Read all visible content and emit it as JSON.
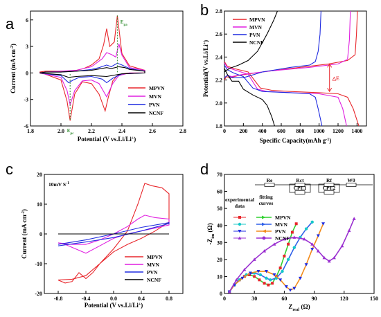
{
  "colors": {
    "MPVN": "#e8262b",
    "MVN": "#e01fe0",
    "PVN": "#1f2be0",
    "NCNF": "#000000",
    "ann_green": "#2e8b2e"
  },
  "chart_data": [
    {
      "panel": "a",
      "type": "line",
      "xlabel": "Potential (V vs.Li/Li+)",
      "ylabel": "Current (mA cm-2)",
      "xlim": [
        1.8,
        2.8
      ],
      "ylim": [
        -6,
        7
      ],
      "xticks": [
        "1.8",
        "2.0",
        "2.2",
        "2.4",
        "2.6",
        "2.8"
      ],
      "yticks": [
        "-6",
        "-3",
        "0",
        "3",
        "6"
      ],
      "legend": [
        "MPVN",
        "MVN",
        "PVN",
        "NCNF"
      ],
      "annotations": {
        "epa": "Epa",
        "epc": "Epc"
      },
      "series": [
        {
          "name": "MPVN",
          "x": [
            1.86,
            2.0,
            2.04,
            2.06,
            2.09,
            2.14,
            2.2,
            2.25,
            2.29,
            2.31,
            2.34,
            2.37,
            2.4,
            2.45,
            2.5,
            2.55,
            2.55,
            2.45,
            2.4,
            2.37,
            2.35,
            2.32,
            2.3,
            2.28,
            2.25,
            2.2,
            2.15,
            2.1,
            2.05,
            2.0,
            1.95,
            1.9,
            1.86
          ],
          "y": [
            0.1,
            -0.8,
            -3.2,
            -5.4,
            -2.4,
            -1.0,
            -1.2,
            -2.4,
            -4.3,
            -2.8,
            -0.9,
            -0.3,
            -0.1,
            0,
            0,
            0,
            0.3,
            0.8,
            2.2,
            6.5,
            3.5,
            3.0,
            5.0,
            3.2,
            1.6,
            0.9,
            0.5,
            0.3,
            0.2,
            0.2,
            0.2,
            0.2,
            0.1
          ]
        },
        {
          "name": "MVN",
          "x": [
            1.86,
            2.0,
            2.04,
            2.06,
            2.09,
            2.14,
            2.2,
            2.25,
            2.3,
            2.34,
            2.38,
            2.45,
            2.55,
            2.55,
            2.45,
            2.4,
            2.38,
            2.36,
            2.33,
            2.3,
            2.27,
            2.2,
            2.1,
            2.0,
            1.9,
            1.86
          ],
          "y": [
            0,
            -0.5,
            -2.0,
            -3.6,
            -2.0,
            -0.9,
            -0.8,
            -1.2,
            -2.7,
            -1.2,
            -0.3,
            0,
            0,
            0.3,
            0.6,
            2.0,
            3.3,
            1.8,
            2.1,
            2.3,
            1.6,
            0.7,
            0.3,
            0.2,
            0.1,
            0
          ]
        },
        {
          "name": "PVN",
          "x": [
            1.86,
            2.0,
            2.05,
            2.08,
            2.12,
            2.2,
            2.27,
            2.3,
            2.34,
            2.4,
            2.55,
            2.55,
            2.45,
            2.4,
            2.37,
            2.33,
            2.3,
            2.25,
            2.2,
            2.1,
            2.0,
            1.9,
            1.86
          ],
          "y": [
            0,
            -0.3,
            -1.1,
            -0.8,
            -0.5,
            -0.4,
            -0.7,
            -1.1,
            -0.6,
            -0.1,
            0,
            0.2,
            0.5,
            0.9,
            1.1,
            0.7,
            0.9,
            0.6,
            0.4,
            0.2,
            0.1,
            0.1,
            0
          ]
        },
        {
          "name": "NCNF",
          "x": [
            1.86,
            2.0,
            2.05,
            2.1,
            2.2,
            2.3,
            2.4,
            2.55,
            2.55,
            2.45,
            2.42,
            2.38,
            2.33,
            2.3,
            2.2,
            2.1,
            2.0,
            1.9,
            1.86
          ],
          "y": [
            0,
            -0.2,
            -0.5,
            -0.4,
            -0.3,
            -0.4,
            -0.1,
            0,
            0.2,
            0.4,
            0.6,
            0.7,
            0.5,
            0.6,
            0.3,
            0.2,
            0.1,
            0.1,
            0
          ]
        }
      ]
    },
    {
      "panel": "b",
      "type": "line",
      "xlabel": "Specific Capacity(mAh g-1)",
      "ylabel": "Potential(V vs.Li/Li+)",
      "xlim": [
        0,
        1500
      ],
      "ylim": [
        1.8,
        2.8
      ],
      "xticks": [
        "0",
        "200",
        "400",
        "600",
        "800",
        "1000",
        "1200",
        "1400"
      ],
      "yticks": [
        "1.8",
        "2.0",
        "2.2",
        "2.4",
        "2.6",
        "2.8"
      ],
      "legend": [
        "MPVN",
        "MVN",
        "PVN",
        "NCNF"
      ],
      "annotations": {
        "delta_e": "△E"
      },
      "series": [
        {
          "name": "MPVN discharge",
          "x": [
            0,
            30,
            100,
            250,
            380,
            500,
            700,
            1000,
            1200,
            1300,
            1360,
            1400,
            1420
          ],
          "y": [
            2.36,
            2.32,
            2.3,
            2.27,
            2.13,
            2.11,
            2.1,
            2.09,
            2.08,
            2.05,
            1.95,
            1.85,
            1.8
          ]
        },
        {
          "name": "MPVN charge",
          "x": [
            0,
            20,
            60,
            150,
            400,
            800,
            1100,
            1300,
            1380,
            1395,
            1405
          ],
          "y": [
            2.2,
            2.23,
            2.22,
            2.24,
            2.27,
            2.31,
            2.34,
            2.37,
            2.42,
            2.6,
            2.8
          ]
        },
        {
          "name": "MVN discharge",
          "x": [
            0,
            30,
            100,
            250,
            350,
            450,
            700,
            1000,
            1200,
            1250,
            1290
          ],
          "y": [
            2.35,
            2.31,
            2.29,
            2.25,
            2.12,
            2.1,
            2.09,
            2.08,
            2.05,
            1.95,
            1.8
          ]
        },
        {
          "name": "MVN charge",
          "x": [
            0,
            30,
            80,
            200,
            500,
            900,
            1200,
            1300,
            1320,
            1330
          ],
          "y": [
            2.22,
            2.24,
            2.23,
            2.25,
            2.28,
            2.31,
            2.34,
            2.38,
            2.55,
            2.8
          ]
        },
        {
          "name": "PVN discharge",
          "x": [
            0,
            30,
            100,
            200,
            300,
            400,
            700,
            900,
            960,
            990,
            1030
          ],
          "y": [
            2.33,
            2.29,
            2.26,
            2.23,
            2.13,
            2.1,
            2.09,
            2.08,
            2.05,
            1.95,
            1.8
          ]
        },
        {
          "name": "PVN charge",
          "x": [
            0,
            30,
            80,
            200,
            400,
            700,
            900,
            960,
            990,
            1010,
            1020
          ],
          "y": [
            2.22,
            2.24,
            2.22,
            2.22,
            2.27,
            2.31,
            2.33,
            2.36,
            2.45,
            2.6,
            2.8
          ]
        },
        {
          "name": "NCNF discharge",
          "x": [
            0,
            30,
            80,
            150,
            200,
            300,
            400,
            450,
            500,
            530
          ],
          "y": [
            2.3,
            2.25,
            2.19,
            2.19,
            2.12,
            2.07,
            2.03,
            1.98,
            1.88,
            1.8
          ]
        },
        {
          "name": "NCNF charge",
          "x": [
            0,
            50,
            150,
            250,
            350,
            450,
            520,
            560
          ],
          "y": [
            2.27,
            2.3,
            2.33,
            2.37,
            2.45,
            2.6,
            2.72,
            2.8
          ]
        }
      ]
    },
    {
      "panel": "c",
      "type": "line",
      "xlabel": "Potential (V vs.Li/Li+)",
      "ylabel": "Current (mA cm-2)",
      "xlim": [
        -1.0,
        1.0
      ],
      "ylim": [
        -20,
        20
      ],
      "xticks": [
        "-0.8",
        "-0.4",
        "0.0",
        "0.4",
        "0.8"
      ],
      "yticks": [
        "-20",
        "-10",
        "0",
        "10",
        "20"
      ],
      "scan_rate": "10mV S-1",
      "legend": [
        "MPVN",
        "MVN",
        "PVN",
        "NCNF"
      ],
      "series": [
        {
          "name": "MPVN",
          "x": [
            -0.8,
            -0.6,
            -0.4,
            -0.2,
            0.0,
            0.2,
            0.35,
            0.45,
            0.55,
            0.7,
            0.8,
            0.8,
            0.6,
            0.4,
            0.2,
            0.0,
            -0.2,
            -0.3,
            -0.4,
            -0.5,
            -0.6,
            -0.7,
            -0.8
          ],
          "y": [
            -15.5,
            -15.2,
            -14,
            -10,
            -5,
            1,
            10,
            17,
            16.2,
            15.5,
            13.5,
            4,
            1,
            -1.5,
            -3.5,
            -6,
            -10,
            -13,
            -15,
            -13,
            -16,
            -16.5,
            -15.5
          ]
        },
        {
          "name": "MVN",
          "x": [
            -0.8,
            -0.6,
            -0.4,
            -0.2,
            0.0,
            0.2,
            0.35,
            0.45,
            0.6,
            0.8,
            0.8,
            0.6,
            0.4,
            0.2,
            0.0,
            -0.2,
            -0.4,
            -0.55,
            -0.7,
            -0.8
          ],
          "y": [
            -3,
            -3.5,
            -3.5,
            -2,
            0,
            2.5,
            5,
            6.3,
            5.5,
            5,
            3,
            2,
            1,
            0,
            -1.5,
            -4,
            -6.5,
            -5,
            -3.5,
            -3
          ]
        },
        {
          "name": "PVN",
          "x": [
            -0.8,
            -0.4,
            0.0,
            0.4,
            0.8,
            0.8,
            0.4,
            0.0,
            -0.4,
            -0.8
          ],
          "y": [
            -4,
            -2.7,
            -1.2,
            1,
            3.5,
            3.8,
            2.2,
            0,
            -2,
            -3.5
          ]
        },
        {
          "name": "NCNF",
          "x": [
            -0.8,
            0.8
          ],
          "y": [
            0,
            0
          ]
        }
      ]
    },
    {
      "panel": "d",
      "type": "scatter",
      "xlabel": "Zreal (Ω)",
      "ylabel": "-Zim (Ω)",
      "xlim": [
        0,
        150
      ],
      "ylim": [
        0,
        70
      ],
      "xticks": [
        "0",
        "30",
        "60",
        "90",
        "120",
        "150"
      ],
      "yticks": [
        "0",
        "10",
        "20",
        "30",
        "40",
        "50",
        "60",
        "70"
      ],
      "legend_headers": {
        "experimental": "experimental data",
        "fitting": "fitting curves"
      },
      "legend": [
        "MPVN",
        "MVN",
        "PVN",
        "NCNF"
      ],
      "circuit_labels": [
        "Re",
        "Rct",
        "CPE1",
        "Rf",
        "CPE2",
        "W0"
      ],
      "series": [
        {
          "name": "MPVN",
          "x": [
            5,
            10,
            15,
            20,
            25,
            30,
            35,
            40,
            44,
            48,
            52,
            56,
            60,
            64,
            68,
            72
          ],
          "y": [
            1,
            5,
            8,
            10,
            11,
            10,
            8,
            6,
            5,
            6,
            10,
            15,
            22,
            29,
            36,
            41
          ]
        },
        {
          "name": "MVN",
          "x": [
            5,
            10,
            15,
            22,
            30,
            36,
            42,
            46,
            52,
            58,
            64,
            70,
            76,
            82,
            88
          ],
          "y": [
            1,
            5,
            8,
            11,
            12,
            11,
            9,
            8,
            9,
            13,
            20,
            27,
            33,
            38,
            42
          ]
        },
        {
          "name": "PVN",
          "x": [
            5,
            10,
            18,
            26,
            34,
            42,
            50,
            56,
            62,
            66,
            70,
            76,
            82,
            88,
            94,
            99
          ],
          "y": [
            1,
            5,
            9,
            12,
            13,
            13,
            11,
            8,
            4,
            2,
            3,
            9,
            17,
            26,
            34,
            41
          ]
        },
        {
          "name": "NCNF",
          "x": [
            5,
            12,
            20,
            30,
            40,
            50,
            60,
            70,
            80,
            88,
            94,
            100,
            105,
            110,
            118,
            125,
            130
          ],
          "y": [
            1,
            8,
            14,
            20,
            25,
            29,
            32,
            33,
            32,
            29,
            25,
            21,
            19,
            21,
            28,
            37,
            44
          ]
        }
      ]
    }
  ]
}
